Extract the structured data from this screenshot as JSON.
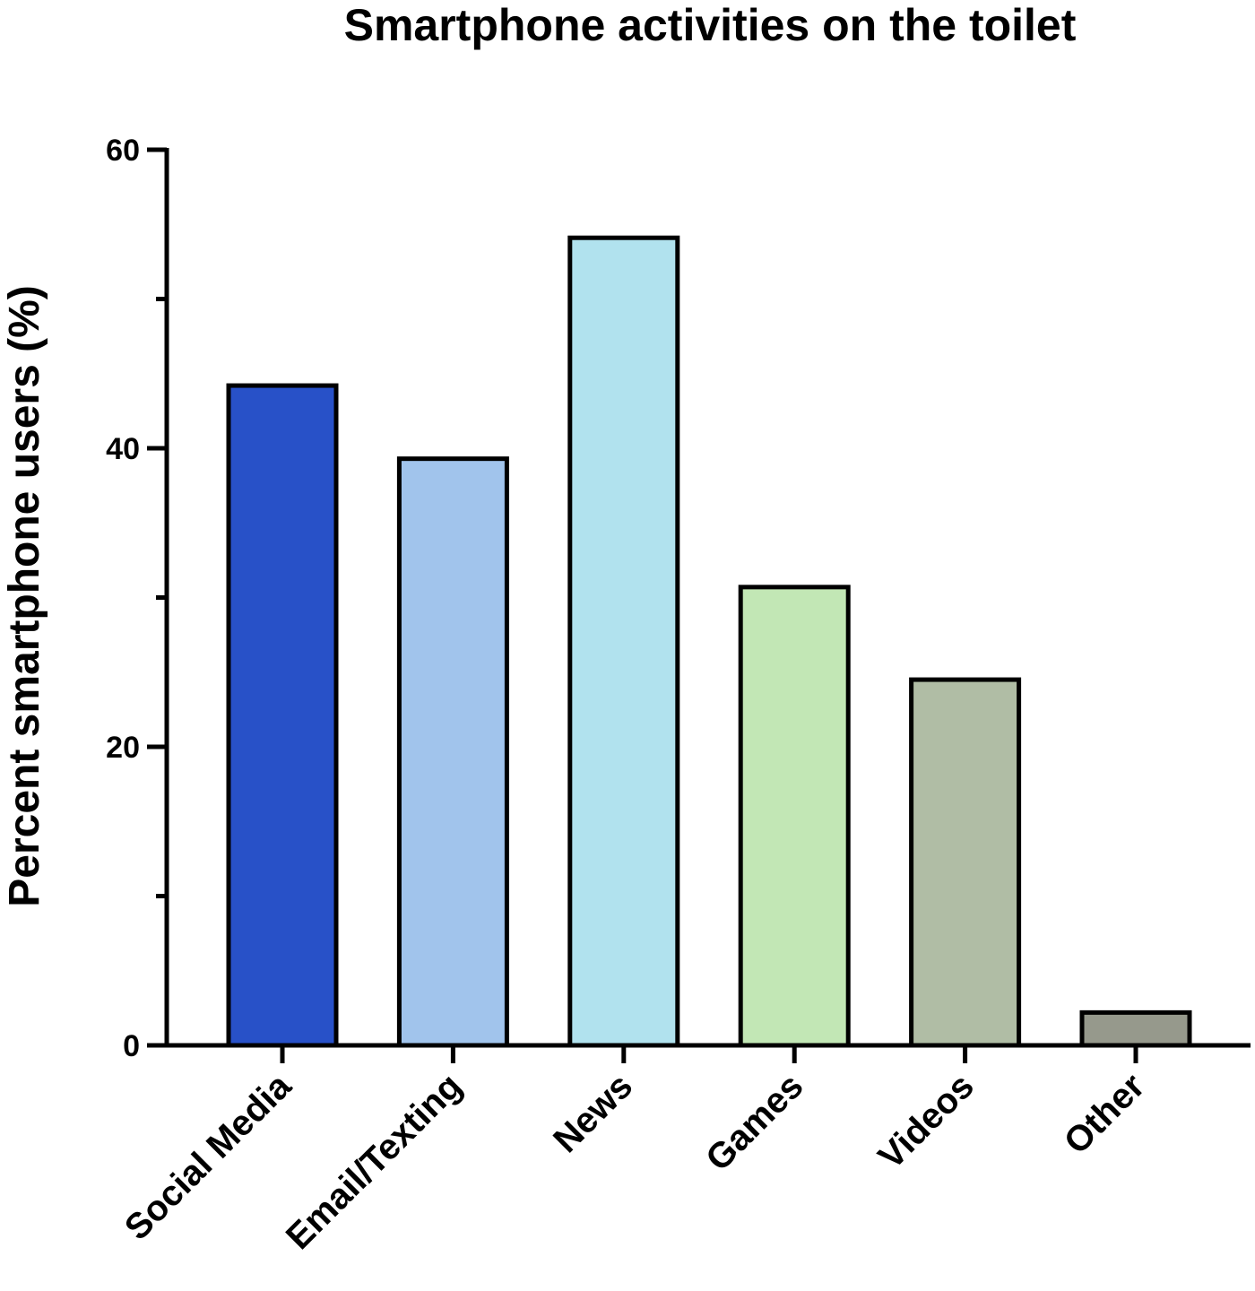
{
  "chart_data": {
    "type": "bar",
    "title": "Smartphone activities on the toilet",
    "xlabel": "",
    "ylabel": "Percent smartphone users (%)",
    "categories": [
      "Social Media",
      "Email/Texting",
      "News",
      "Games",
      "Videos",
      "Other"
    ],
    "values": [
      44.2,
      39.3,
      54.1,
      30.7,
      24.5,
      2.2
    ],
    "colors": [
      "#2851c8",
      "#a1c4ec",
      "#b1e2ee",
      "#c2e7b5",
      "#b0bda5",
      "#96998c"
    ],
    "ylim": [
      0,
      60
    ],
    "yticks": [
      0,
      20,
      40,
      60
    ],
    "yticks_minor": [
      10,
      30,
      50
    ],
    "grid": false,
    "legend": "none"
  }
}
